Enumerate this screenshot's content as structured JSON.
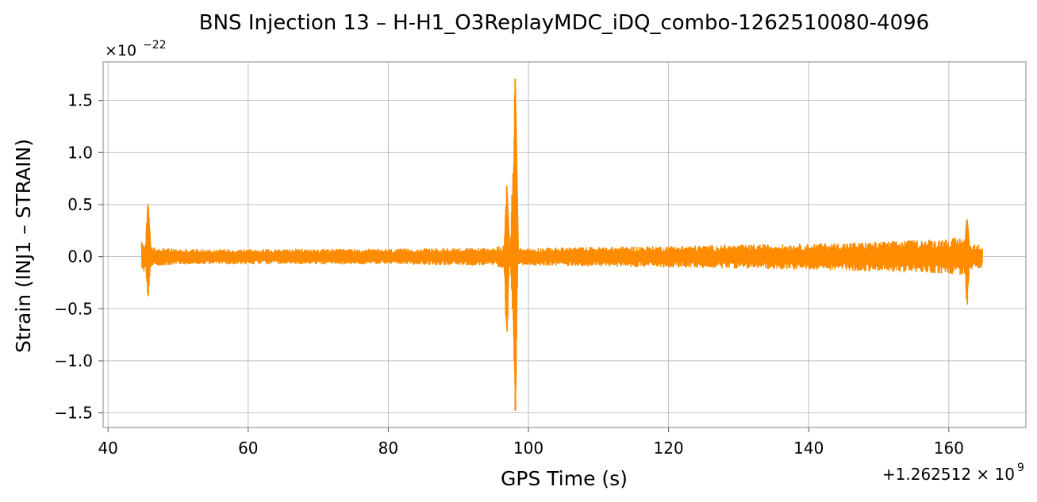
{
  "chart_data": {
    "type": "line",
    "title": "BNS Injection 13 – H-H1_O3ReplayMDC_iDQ_combo-1262510080-4096",
    "xlabel": "GPS Time (s)",
    "ylabel": "Strain (INJ1 – STRAIN)",
    "x_offset_label": "+1.262512 × 10",
    "x_offset_exp": "9",
    "y_scale_label": "×10",
    "y_scale_exp": "−22",
    "xlim": [
      39.3,
      171
    ],
    "ylim": [
      -1.64,
      1.87
    ],
    "xticks": [
      40,
      60,
      80,
      100,
      120,
      140,
      160
    ],
    "xtick_labels": [
      "40",
      "60",
      "80",
      "100",
      "120",
      "140",
      "160"
    ],
    "yticks": [
      -1.5,
      -1.0,
      -0.5,
      0.0,
      0.5,
      1.0,
      1.5
    ],
    "ytick_labels": [
      "−1.5",
      "−1.0",
      "−0.5",
      "0.0",
      "0.5",
      "1.0",
      "1.5"
    ],
    "grid": true,
    "series": [
      {
        "color": "#ff8c00",
        "x_range": [
          44.8,
          164.8
        ],
        "envelope": {
          "x": [
            44.8,
            45.8,
            46.2,
            50,
            60,
            70,
            80,
            90,
            95,
            96.5,
            97.5,
            98.4,
            99,
            100,
            110,
            120,
            130,
            140,
            150,
            160,
            162.3,
            163,
            164.8
          ],
          "upper": [
            0.15,
            0.12,
            0.09,
            0.07,
            0.07,
            0.07,
            0.07,
            0.08,
            0.08,
            0.12,
            0.08,
            0.09,
            0.08,
            0.08,
            0.09,
            0.1,
            0.11,
            0.12,
            0.14,
            0.17,
            0.19,
            0.12,
            0.11
          ],
          "lower": [
            -0.15,
            -0.12,
            -0.09,
            -0.07,
            -0.07,
            -0.07,
            -0.07,
            -0.08,
            -0.08,
            -0.12,
            -0.08,
            -0.09,
            -0.08,
            -0.08,
            -0.09,
            -0.1,
            -0.11,
            -0.12,
            -0.14,
            -0.16,
            -0.18,
            -0.12,
            -0.11
          ]
        },
        "spikes": [
          {
            "x": 45.7,
            "max": 0.5,
            "min": -0.38
          },
          {
            "x": 96.9,
            "max": 0.68,
            "min": -0.72
          },
          {
            "x": 97.8,
            "max": 0.8,
            "min": -0.6
          },
          {
            "x": 98.1,
            "max": 1.71,
            "min": -1.48
          },
          {
            "x": 162.6,
            "max": 0.36,
            "min": -0.46
          }
        ]
      }
    ]
  }
}
